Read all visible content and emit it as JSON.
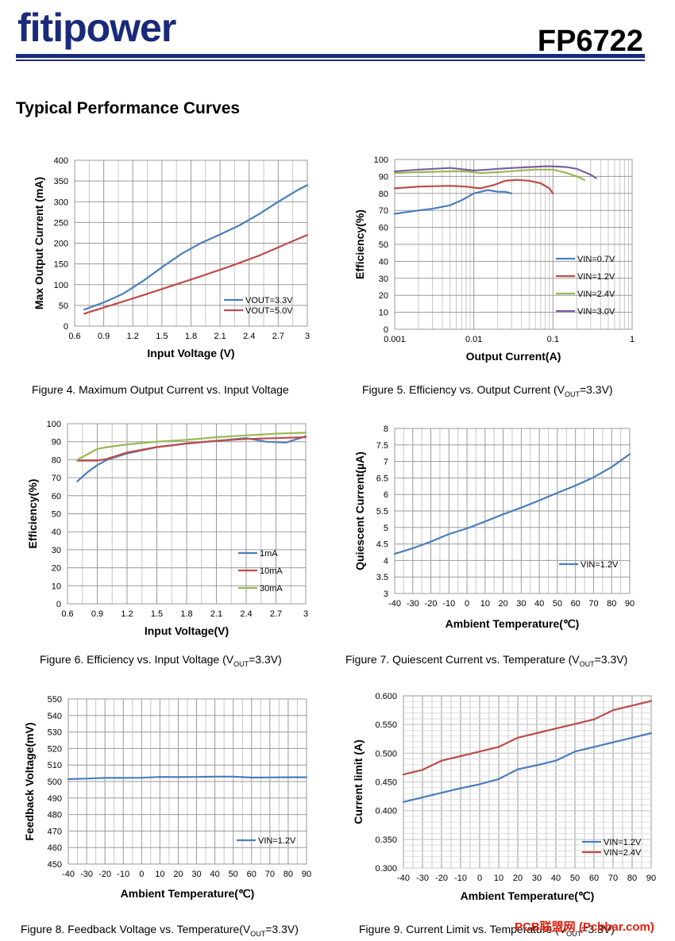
{
  "header": {
    "brand": "fitipower",
    "part_number": "FP6722"
  },
  "section_title": "Typical Performance Curves",
  "captions": {
    "fig4": "Figure 4. Maximum Output Current vs. Input Voltage",
    "fig5_pre": "Figure 5. Efficiency vs. Output Current (V",
    "fig5_sub": "OUT",
    "fig5_post": "=3.3V)",
    "fig6_pre": "Figure 6. Efficiency vs. Input Voltage (V",
    "fig6_sub": "OUT",
    "fig6_post": "=3.3V)",
    "fig7_pre": "Figure 7. Quiescent Current vs. Temperature (V",
    "fig7_sub": "OUT",
    "fig7_post": "=3.3V)",
    "fig8_pre": "Figure 8. Feedback Voltage vs. Temperature(V",
    "fig8_sub": "OUT",
    "fig8_post": "=3.3V)",
    "fig9_pre": "Figure 9. Current Limit vs. Temperature (V",
    "fig9_sub": "OUT",
    "fig9_post": "=3.3V)"
  },
  "watermark": "PCB联盟网 (Pcbbar.com)",
  "colors": {
    "blue": "#4a7ebb",
    "red": "#be4b48",
    "green": "#98b954",
    "purple": "#7d5fa0",
    "navy": "#1a2a7a"
  },
  "chart_data": [
    {
      "id": "fig4",
      "type": "line",
      "xlabel": "Input Voltage (V)",
      "ylabel": "Max Output Current (mA)",
      "xlim": [
        0.6,
        3.0
      ],
      "ylim": [
        0,
        400
      ],
      "xticks": [
        "0.6",
        "0.9",
        "1.2",
        "1.5",
        "1.8",
        "2.1",
        "2.4",
        "2.7",
        "3"
      ],
      "yticks": [
        "0",
        "50",
        "100",
        "150",
        "200",
        "250",
        "300",
        "350",
        "400"
      ],
      "series": [
        {
          "name": "VOUT=3.3V",
          "color": "#4a7ebb",
          "x": [
            0.7,
            0.9,
            1.1,
            1.3,
            1.5,
            1.7,
            1.9,
            2.1,
            2.3,
            2.5,
            2.7,
            2.9,
            3.0
          ],
          "y": [
            40,
            57,
            78,
            108,
            142,
            174,
            200,
            221,
            243,
            270,
            300,
            328,
            340
          ]
        },
        {
          "name": "VOUT=5.0V",
          "color": "#be4b48",
          "x": [
            0.7,
            1.0,
            1.3,
            1.6,
            1.9,
            2.2,
            2.5,
            2.8,
            3.0
          ],
          "y": [
            30,
            52,
            74,
            97,
            120,
            144,
            170,
            200,
            220
          ]
        }
      ]
    },
    {
      "id": "fig5",
      "type": "line",
      "xscale": "log",
      "xlabel": "Output Current(A)",
      "ylabel": "Efficiency(%)",
      "xlim": [
        0.001,
        1
      ],
      "ylim": [
        0,
        100
      ],
      "xticks": [
        "0.001",
        "0.01",
        "0.1",
        "1"
      ],
      "yticks": [
        "0",
        "10",
        "20",
        "30",
        "40",
        "50",
        "60",
        "70",
        "80",
        "90",
        "100"
      ],
      "series": [
        {
          "name": "VIN=0.7V",
          "color": "#4a7ebb",
          "x": [
            0.001,
            0.002,
            0.003,
            0.005,
            0.007,
            0.01,
            0.015,
            0.02,
            0.025,
            0.03
          ],
          "y": [
            68,
            70,
            71,
            73,
            76,
            80,
            82,
            81,
            81,
            80
          ]
        },
        {
          "name": "VIN=1.2V",
          "color": "#be4b48",
          "x": [
            0.001,
            0.002,
            0.005,
            0.008,
            0.012,
            0.018,
            0.025,
            0.035,
            0.05,
            0.07,
            0.09,
            0.1
          ],
          "y": [
            83,
            84,
            84.5,
            84,
            83,
            85,
            87.5,
            88,
            87.5,
            86,
            83,
            80
          ]
        },
        {
          "name": "VIN=2.4V",
          "color": "#98b954",
          "x": [
            0.001,
            0.002,
            0.005,
            0.008,
            0.012,
            0.02,
            0.04,
            0.06,
            0.1,
            0.15,
            0.2,
            0.25
          ],
          "y": [
            92,
            92.5,
            93,
            93,
            92,
            92.5,
            93.5,
            94,
            94,
            92,
            90,
            88
          ]
        },
        {
          "name": "VIN=3.0V",
          "color": "#7d5fa0",
          "x": [
            0.001,
            0.002,
            0.005,
            0.01,
            0.015,
            0.02,
            0.03,
            0.05,
            0.08,
            0.1,
            0.15,
            0.2,
            0.3,
            0.35
          ],
          "y": [
            93,
            94,
            95,
            93.5,
            94,
            94.5,
            95,
            95.5,
            96,
            96,
            95.5,
            94.5,
            91,
            89
          ]
        }
      ]
    },
    {
      "id": "fig6",
      "type": "line",
      "xlabel": "Input Voltage(V)",
      "ylabel": "Efficiency(%)",
      "xlim": [
        0.6,
        3.0
      ],
      "ylim": [
        0,
        100
      ],
      "xticks": [
        "0.6",
        "0.9",
        "1.2",
        "1.5",
        "1.8",
        "2.1",
        "2.4",
        "2.7",
        "3"
      ],
      "yticks": [
        "0",
        "10",
        "20",
        "30",
        "40",
        "50",
        "60",
        "70",
        "80",
        "90",
        "100"
      ],
      "series": [
        {
          "name": "1mA",
          "color": "#4a7ebb",
          "x": [
            0.7,
            0.8,
            0.9,
            1.0,
            1.2,
            1.5,
            1.8,
            2.1,
            2.4,
            2.6,
            2.8,
            3.0
          ],
          "y": [
            68,
            73,
            77,
            80,
            83.5,
            87,
            89,
            90.5,
            92,
            90,
            89.5,
            93
          ]
        },
        {
          "name": "10mA",
          "color": "#be4b48",
          "x": [
            0.7,
            0.9,
            1.0,
            1.2,
            1.5,
            1.8,
            2.1,
            2.4,
            2.7,
            3.0
          ],
          "y": [
            79.5,
            79.5,
            80.5,
            84,
            87,
            89,
            90.5,
            91.5,
            92,
            92.5
          ]
        },
        {
          "name": "30mA",
          "color": "#98b954",
          "x": [
            0.7,
            0.8,
            0.9,
            1.0,
            1.2,
            1.5,
            1.8,
            2.1,
            2.4,
            2.7,
            3.0
          ],
          "y": [
            80,
            83,
            86,
            87,
            88.5,
            90,
            91,
            92.5,
            93.5,
            94.5,
            95
          ]
        }
      ]
    },
    {
      "id": "fig7",
      "type": "line",
      "xlabel": "Ambient Temperature(℃)",
      "ylabel": "Quiescent Current(µA)",
      "xlim": [
        -40,
        90
      ],
      "ylim": [
        3,
        8
      ],
      "xticks": [
        "-40",
        "-30",
        "-20",
        "-10",
        "0",
        "10",
        "20",
        "30",
        "40",
        "50",
        "60",
        "70",
        "80",
        "90"
      ],
      "yticks": [
        "3",
        "3.5",
        "4",
        "4.5",
        "5",
        "5.5",
        "6",
        "6.5",
        "7",
        "7.5",
        "8"
      ],
      "series": [
        {
          "name": "VIN=1.2V",
          "color": "#4a7ebb",
          "x": [
            -40,
            -30,
            -20,
            -10,
            0,
            10,
            20,
            30,
            40,
            50,
            60,
            70,
            80,
            90
          ],
          "y": [
            4.2,
            4.37,
            4.57,
            4.8,
            4.97,
            5.18,
            5.4,
            5.6,
            5.82,
            6.05,
            6.27,
            6.52,
            6.83,
            7.22
          ]
        }
      ]
    },
    {
      "id": "fig8",
      "type": "line",
      "xlabel": "Ambient Temperature(℃)",
      "ylabel": "Feedback Voltage(mV)",
      "xlim": [
        -40,
        90
      ],
      "ylim": [
        450,
        550
      ],
      "xticks": [
        "-40",
        "-30",
        "-20",
        "-10",
        "0",
        "10",
        "20",
        "30",
        "40",
        "50",
        "60",
        "70",
        "80",
        "90"
      ],
      "yticks": [
        "450",
        "460",
        "470",
        "480",
        "490",
        "500",
        "510",
        "520",
        "530",
        "540",
        "550"
      ],
      "series": [
        {
          "name": "VIN=1.2V",
          "color": "#4a7ebb",
          "x": [
            -40,
            -30,
            -20,
            -10,
            0,
            10,
            20,
            30,
            40,
            50,
            60,
            70,
            80,
            90
          ],
          "y": [
            501.5,
            501.8,
            502.2,
            502.2,
            502.3,
            502.8,
            502.7,
            502.8,
            503,
            503,
            502.4,
            502.5,
            502.6,
            502.6
          ]
        }
      ]
    },
    {
      "id": "fig9",
      "type": "line",
      "xlabel": "Ambient Temperature(℃)",
      "ylabel": "Current limit (A)",
      "xlim": [
        -40,
        90
      ],
      "ylim": [
        0.3,
        0.6
      ],
      "xticks": [
        "-40",
        "-30",
        "-20",
        "-10",
        "0",
        "10",
        "20",
        "30",
        "40",
        "50",
        "60",
        "70",
        "80",
        "90"
      ],
      "yticks": [
        "0.300",
        "0.350",
        "0.400",
        "0.450",
        "0.500",
        "0.550",
        "0.600"
      ],
      "series": [
        {
          "name": "VIN=1.2V",
          "color": "#4a7ebb",
          "x": [
            -40,
            -30,
            -20,
            -10,
            0,
            10,
            20,
            30,
            40,
            50,
            60,
            70,
            80,
            90
          ],
          "y": [
            0.415,
            0.423,
            0.431,
            0.439,
            0.446,
            0.455,
            0.472,
            0.479,
            0.487,
            0.503,
            0.511,
            0.519,
            0.527,
            0.535
          ]
        },
        {
          "name": "VIN=2.4V",
          "color": "#be4b48",
          "x": [
            -40,
            -30,
            -20,
            -10,
            0,
            10,
            20,
            30,
            40,
            50,
            60,
            70,
            80,
            90
          ],
          "y": [
            0.463,
            0.471,
            0.487,
            0.495,
            0.503,
            0.511,
            0.527,
            0.535,
            0.543,
            0.551,
            0.559,
            0.575,
            0.583,
            0.591
          ]
        }
      ]
    }
  ]
}
